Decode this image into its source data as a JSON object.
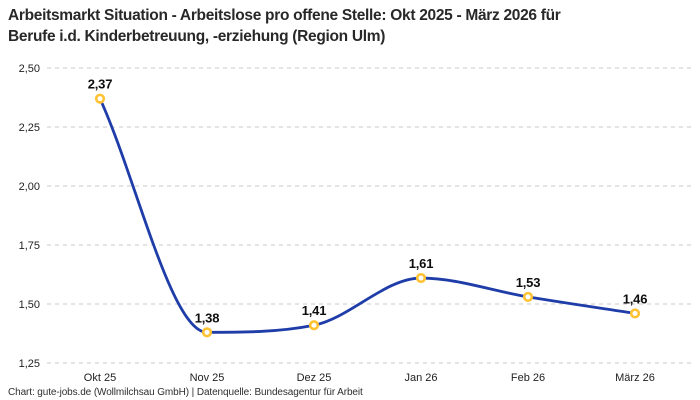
{
  "header": {
    "title_line1": "Arbeitsmarkt Situation - Arbeitslose pro offene Stelle: Okt 2025 - März 2026 für",
    "title_line2": "Berufe i.d. Kinderbetreuung, -erziehung (Region Ulm)"
  },
  "footer": {
    "attribution": "Chart: gute-jobs.de (Wollmilchsau GmbH) | Datenquelle: Bundesagentur für Arbeit"
  },
  "chart_data": {
    "type": "line",
    "title": "Arbeitsmarkt Situation - Arbeitslose pro offene Stelle: Okt 2025 - März 2026 für Berufe i.d. Kinderbetreuung, -erziehung (Region Ulm)",
    "categories": [
      "Okt 25",
      "Nov 25",
      "Dez 25",
      "Jan 26",
      "Feb 26",
      "März 26"
    ],
    "values": [
      2.37,
      1.38,
      1.41,
      1.61,
      1.53,
      1.46
    ],
    "value_labels": [
      "2,37",
      "1,38",
      "1,41",
      "1,61",
      "1,53",
      "1,46"
    ],
    "y_ticks": [
      2.5,
      2.25,
      2.0,
      1.75,
      1.5,
      1.25
    ],
    "y_tick_labels": [
      "2,50",
      "2,25",
      "2,00",
      "1,75",
      "1,50",
      "1,25"
    ],
    "ylim": [
      1.25,
      2.5
    ],
    "xlabel": "",
    "ylabel": "",
    "legend": "none",
    "grid": "horizontal-dashed",
    "curve": "smooth-monotone",
    "colors": {
      "line": "#1f3da8",
      "marker_ring": "#ffc233",
      "marker_fill": "#ffffff",
      "grid": "#c9c9c9",
      "tick_text": "#222222",
      "value_text": "#0e0e0e"
    }
  }
}
